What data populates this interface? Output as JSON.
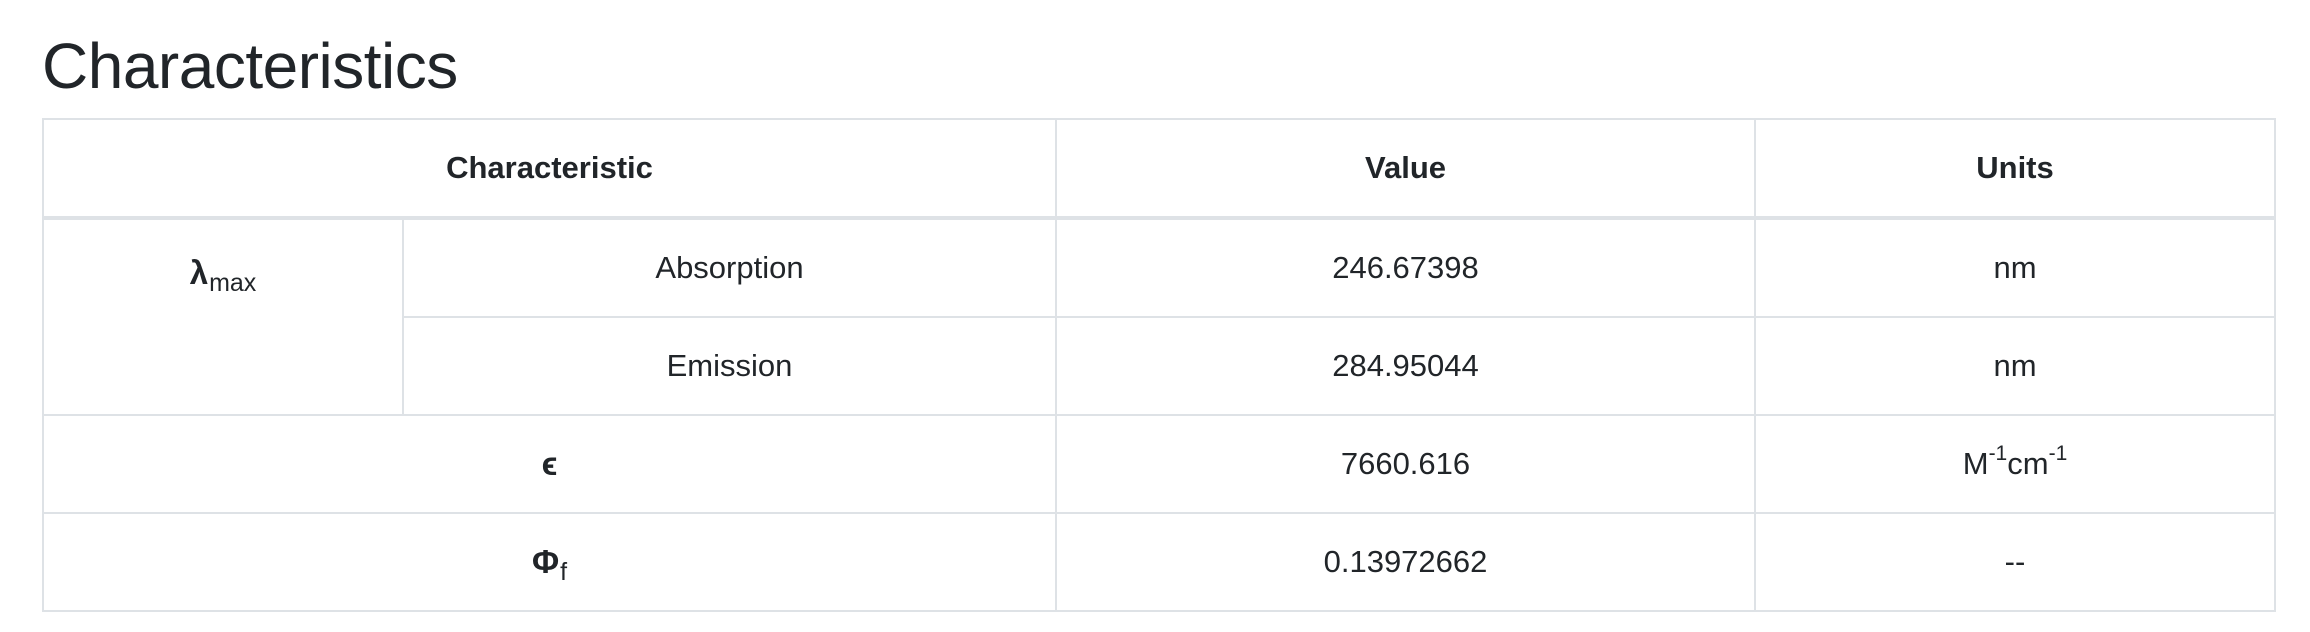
{
  "page": {
    "title": "Characteristics"
  },
  "table": {
    "headers": {
      "characteristic": "Characteristic",
      "value": "Value",
      "units": "Units"
    },
    "lambda": {
      "symbol": "λ",
      "subscript": "max",
      "rows": [
        {
          "label": "Absorption",
          "value": "246.67398",
          "unit": "nm"
        },
        {
          "label": "Emission",
          "value": "284.95044",
          "unit": "nm"
        }
      ]
    },
    "epsilon": {
      "symbol": "ϵ",
      "value": "7660.616",
      "unit_parts": [
        "M",
        "-1",
        "cm",
        "-1"
      ]
    },
    "phi": {
      "symbol": "Φ",
      "subscript": "f",
      "value": "0.13972662",
      "unit": "--"
    }
  }
}
